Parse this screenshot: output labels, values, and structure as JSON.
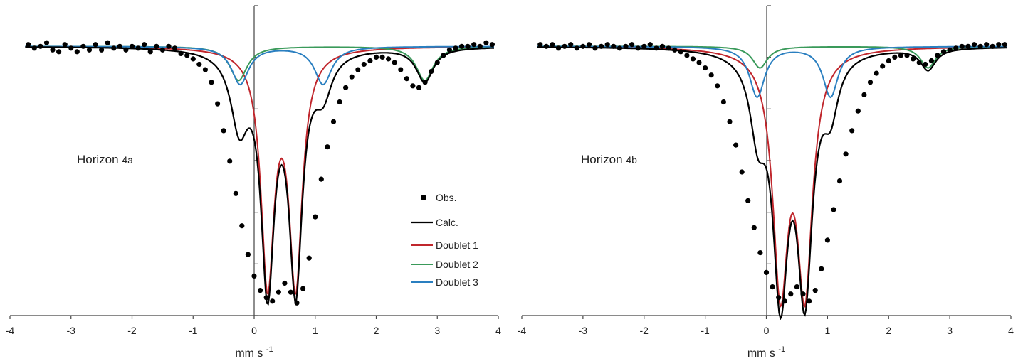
{
  "chart_data": [
    {
      "type": "line",
      "annotation": "Horizon",
      "annotation_sub": "4a",
      "xlabel": "mm s",
      "xlabel_sup": "-1",
      "xlim": [
        -4,
        4
      ],
      "xticks": [
        -4,
        -3,
        -2,
        -1,
        0,
        1,
        2,
        3,
        4
      ],
      "ylim": [
        0.85,
        1.01
      ],
      "grid": false,
      "legend": "center-right",
      "legend_entries": [
        "Obs.",
        "Calc.",
        "Doublet 1",
        "Doublet 2",
        "Doublet 3"
      ],
      "colors": {
        "obs": "#000000",
        "calc": "#000000",
        "d1": "#c0262c",
        "d2": "#3a9a5a",
        "d3": "#2a7fc0"
      },
      "doublets": [
        {
          "name": "Doublet 1",
          "color": "#c0262c",
          "center": 0.45,
          "split": 0.46,
          "depth": 0.129,
          "width": 0.26
        },
        {
          "name": "Doublet 2",
          "color": "#3a9a5a",
          "center": 1.27,
          "split": 3.05,
          "depth": 0.019,
          "width": 0.34
        },
        {
          "name": "Doublet 3",
          "color": "#2a7fc0",
          "center": 0.45,
          "split": 1.36,
          "depth": 0.021,
          "width": 0.34
        }
      ],
      "observed": [
        [
          -3.7,
          1.001
        ],
        [
          -3.6,
          0.999
        ],
        [
          -3.5,
          1.0
        ],
        [
          -3.4,
          1.002
        ],
        [
          -3.3,
          0.998
        ],
        [
          -3.2,
          0.997
        ],
        [
          -3.1,
          1.001
        ],
        [
          -3.0,
          0.999
        ],
        [
          -2.9,
          0.997
        ],
        [
          -2.8,
          1.0
        ],
        [
          -2.7,
          0.998
        ],
        [
          -2.6,
          1.001
        ],
        [
          -2.5,
          0.998
        ],
        [
          -2.4,
          1.002
        ],
        [
          -2.3,
          0.999
        ],
        [
          -2.2,
          1.0
        ],
        [
          -2.1,
          0.998
        ],
        [
          -2.0,
          1.0
        ],
        [
          -1.9,
          0.999
        ],
        [
          -1.8,
          1.001
        ],
        [
          -1.7,
          0.997
        ],
        [
          -1.6,
          1.0
        ],
        [
          -1.5,
          0.998
        ],
        [
          -1.4,
          1.0
        ],
        [
          -1.3,
          0.999
        ],
        [
          -1.2,
          0.996
        ],
        [
          -1.1,
          0.995
        ],
        [
          -1.0,
          0.993
        ],
        [
          -0.9,
          0.99
        ],
        [
          -0.8,
          0.987
        ],
        [
          -0.7,
          0.98
        ],
        [
          -0.6,
          0.968
        ],
        [
          -0.5,
          0.953
        ],
        [
          -0.4,
          0.936
        ],
        [
          -0.3,
          0.918
        ],
        [
          -0.2,
          0.9
        ],
        [
          -0.1,
          0.884
        ],
        [
          0.0,
          0.872
        ],
        [
          0.1,
          0.864
        ],
        [
          0.2,
          0.86
        ],
        [
          0.3,
          0.858
        ],
        [
          0.4,
          0.863
        ],
        [
          0.5,
          0.868
        ],
        [
          0.6,
          0.863
        ],
        [
          0.7,
          0.857
        ],
        [
          0.8,
          0.865
        ],
        [
          0.9,
          0.882
        ],
        [
          1.0,
          0.905
        ],
        [
          1.1,
          0.926
        ],
        [
          1.2,
          0.944
        ],
        [
          1.3,
          0.958
        ],
        [
          1.4,
          0.969
        ],
        [
          1.5,
          0.977
        ],
        [
          1.6,
          0.983
        ],
        [
          1.7,
          0.987
        ],
        [
          1.8,
          0.99
        ],
        [
          1.9,
          0.992
        ],
        [
          2.0,
          0.994
        ],
        [
          2.1,
          0.994
        ],
        [
          2.2,
          0.993
        ],
        [
          2.3,
          0.991
        ],
        [
          2.4,
          0.987
        ],
        [
          2.5,
          0.982
        ],
        [
          2.6,
          0.978
        ],
        [
          2.7,
          0.977
        ],
        [
          2.8,
          0.98
        ],
        [
          2.9,
          0.986
        ],
        [
          3.0,
          0.991
        ],
        [
          3.1,
          0.995
        ],
        [
          3.2,
          0.998
        ],
        [
          3.3,
          0.999
        ],
        [
          3.4,
          1.0
        ],
        [
          3.5,
          1.0
        ],
        [
          3.6,
          1.001
        ],
        [
          3.7,
          1.0
        ],
        [
          3.8,
          1.002
        ],
        [
          3.9,
          1.001
        ]
      ]
    },
    {
      "type": "line",
      "annotation": "Horizon",
      "annotation_sub": "4b",
      "xlabel": "mm s",
      "xlabel_sup": "-1",
      "xlim": [
        -4,
        4
      ],
      "xticks": [
        -4,
        -3,
        -2,
        -1,
        0,
        1,
        2,
        3,
        4
      ],
      "ylim": [
        0.85,
        1.01
      ],
      "grid": false,
      "legend": "none",
      "colors": {
        "obs": "#000000",
        "calc": "#000000",
        "d1": "#c0262c",
        "d2": "#3a9a5a",
        "d3": "#2a7fc0"
      },
      "doublets": [
        {
          "name": "Doublet 1",
          "color": "#c0262c",
          "center": 0.43,
          "split": 0.4,
          "depth": 0.129,
          "width": 0.3
        },
        {
          "name": "Doublet 2",
          "color": "#3a9a5a",
          "center": 1.27,
          "split": 2.75,
          "depth": 0.012,
          "width": 0.3
        },
        {
          "name": "Doublet 3",
          "color": "#2a7fc0",
          "center": 0.45,
          "split": 1.2,
          "depth": 0.028,
          "width": 0.3
        }
      ],
      "observed": [
        [
          -3.7,
          1.001
        ],
        [
          -3.6,
          1.0
        ],
        [
          -3.5,
          1.001
        ],
        [
          -3.4,
          0.999
        ],
        [
          -3.3,
          1.0
        ],
        [
          -3.2,
          1.001
        ],
        [
          -3.1,
          0.999
        ],
        [
          -3.0,
          1.0
        ],
        [
          -2.9,
          1.001
        ],
        [
          -2.8,
          0.999
        ],
        [
          -2.7,
          1.0
        ],
        [
          -2.6,
          1.001
        ],
        [
          -2.5,
          1.0
        ],
        [
          -2.4,
          0.999
        ],
        [
          -2.3,
          1.0
        ],
        [
          -2.2,
          1.001
        ],
        [
          -2.1,
          0.999
        ],
        [
          -2.0,
          1.0
        ],
        [
          -1.9,
          1.001
        ],
        [
          -1.8,
          0.999
        ],
        [
          -1.7,
          1.0
        ],
        [
          -1.6,
          0.999
        ],
        [
          -1.5,
          0.998
        ],
        [
          -1.4,
          0.997
        ],
        [
          -1.3,
          0.995
        ],
        [
          -1.2,
          0.993
        ],
        [
          -1.1,
          0.991
        ],
        [
          -1.0,
          0.988
        ],
        [
          -0.9,
          0.984
        ],
        [
          -0.8,
          0.978
        ],
        [
          -0.7,
          0.969
        ],
        [
          -0.6,
          0.958
        ],
        [
          -0.5,
          0.945
        ],
        [
          -0.4,
          0.93
        ],
        [
          -0.3,
          0.914
        ],
        [
          -0.2,
          0.899
        ],
        [
          -0.1,
          0.885
        ],
        [
          0.0,
          0.874
        ],
        [
          0.1,
          0.866
        ],
        [
          0.2,
          0.86
        ],
        [
          0.3,
          0.858
        ],
        [
          0.4,
          0.862
        ],
        [
          0.5,
          0.866
        ],
        [
          0.6,
          0.862
        ],
        [
          0.7,
          0.858
        ],
        [
          0.8,
          0.864
        ],
        [
          0.9,
          0.876
        ],
        [
          1.0,
          0.892
        ],
        [
          1.1,
          0.909
        ],
        [
          1.2,
          0.925
        ],
        [
          1.3,
          0.94
        ],
        [
          1.4,
          0.953
        ],
        [
          1.5,
          0.964
        ],
        [
          1.6,
          0.973
        ],
        [
          1.7,
          0.98
        ],
        [
          1.8,
          0.985
        ],
        [
          1.9,
          0.989
        ],
        [
          2.0,
          0.992
        ],
        [
          2.1,
          0.994
        ],
        [
          2.2,
          0.995
        ],
        [
          2.3,
          0.995
        ],
        [
          2.4,
          0.993
        ],
        [
          2.5,
          0.991
        ],
        [
          2.6,
          0.99
        ],
        [
          2.7,
          0.992
        ],
        [
          2.8,
          0.995
        ],
        [
          2.9,
          0.997
        ],
        [
          3.0,
          0.998
        ],
        [
          3.1,
          0.999
        ],
        [
          3.2,
          1.0
        ],
        [
          3.3,
          1.0
        ],
        [
          3.4,
          1.001
        ],
        [
          3.5,
          1.0
        ],
        [
          3.6,
          1.001
        ],
        [
          3.7,
          1.0
        ],
        [
          3.8,
          1.001
        ],
        [
          3.9,
          1.001
        ]
      ]
    }
  ]
}
